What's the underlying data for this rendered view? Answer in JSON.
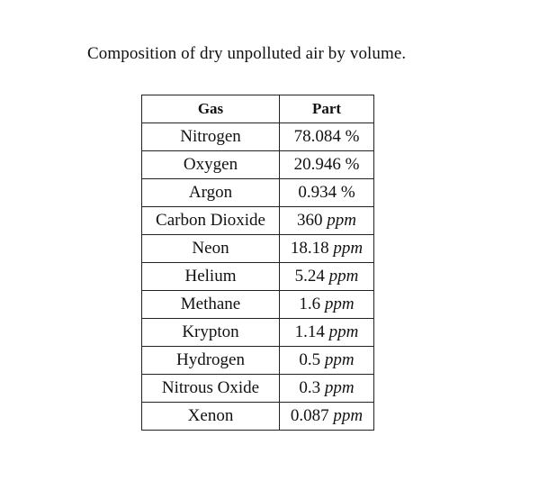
{
  "caption": "Composition of dry unpolluted air by volume.",
  "table": {
    "headers": {
      "gas": "Gas",
      "part": "Part"
    },
    "rows": [
      {
        "gas": "Nitrogen",
        "value": "78.084",
        "unit": "%",
        "unit_style": "normal"
      },
      {
        "gas": "Oxygen",
        "value": "20.946",
        "unit": "%",
        "unit_style": "normal"
      },
      {
        "gas": "Argon",
        "value": "0.934",
        "unit": "%",
        "unit_style": "normal"
      },
      {
        "gas": "Carbon Dioxide",
        "value": "360",
        "unit": "ppm",
        "unit_style": "italic"
      },
      {
        "gas": "Neon",
        "value": "18.18",
        "unit": "ppm",
        "unit_style": "italic"
      },
      {
        "gas": "Helium",
        "value": "5.24",
        "unit": "ppm",
        "unit_style": "italic"
      },
      {
        "gas": "Methane",
        "value": "1.6",
        "unit": "ppm",
        "unit_style": "italic"
      },
      {
        "gas": "Krypton",
        "value": "1.14",
        "unit": "ppm",
        "unit_style": "italic"
      },
      {
        "gas": "Hydrogen",
        "value": "0.5",
        "unit": "ppm",
        "unit_style": "italic"
      },
      {
        "gas": "Nitrous Oxide",
        "value": "0.3",
        "unit": "ppm",
        "unit_style": "italic"
      },
      {
        "gas": "Xenon",
        "value": "0.087",
        "unit": "ppm",
        "unit_style": "italic"
      }
    ]
  }
}
